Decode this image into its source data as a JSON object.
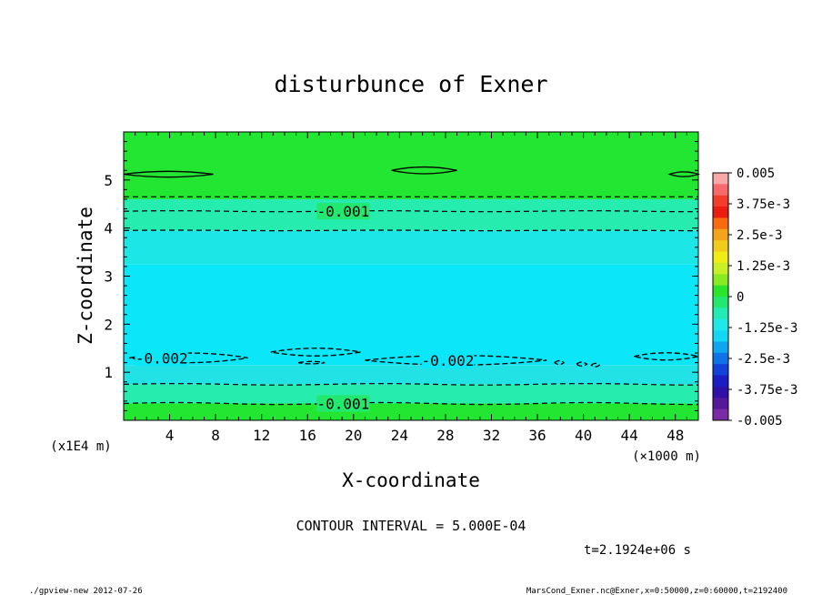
{
  "chart_data": {
    "type": "contour",
    "title": "disturbunce of Exner",
    "xlabel": "X-coordinate",
    "ylabel": "Z-coordinate",
    "x_unit": "(×1000 m)",
    "y_unit": "(x1E4 m)",
    "xlim": [
      0,
      50
    ],
    "ylim": [
      0,
      6
    ],
    "x_ticks": [
      4,
      8,
      12,
      16,
      20,
      24,
      28,
      32,
      36,
      40,
      44,
      48
    ],
    "y_ticks": [
      1,
      2,
      3,
      4,
      5
    ],
    "contour_interval_text": "CONTOUR INTERVAL = 5.000E-04",
    "time_text": "t=2.1924e+06 s",
    "contour_labels": [
      {
        "text": "-0.001",
        "x": 19.1,
        "z": 4.35
      },
      {
        "text": "-0.002",
        "x": 3.3,
        "z": 1.3
      },
      {
        "text": "-0.002",
        "x": 28.2,
        "z": 1.25
      },
      {
        "text": "-0.001",
        "x": 19.1,
        "z": 0.35
      }
    ],
    "bands": [
      {
        "z": [
          0.0,
          0.35
        ],
        "color": "#22e632"
      },
      {
        "z": [
          0.35,
          0.75
        ],
        "color": "#26ecad"
      },
      {
        "z": [
          0.75,
          1.15
        ],
        "color": "#22e2e6"
      },
      {
        "z": [
          1.15,
          3.25
        ],
        "color": "#0be6f8"
      },
      {
        "z": [
          3.25,
          3.95
        ],
        "color": "#1ce7e6"
      },
      {
        "z": [
          3.95,
          4.6
        ],
        "color": "#26ecb0"
      },
      {
        "z": [
          4.6,
          6.0
        ],
        "color": "#22e632"
      }
    ],
    "colorbar": {
      "min": -0.005,
      "max": 0.005,
      "labels": [
        "0.005",
        "3.75e-3",
        "2.5e-3",
        "1.25e-3",
        "0",
        "-1.25e-3",
        "-2.5e-3",
        "-3.75e-3",
        "-0.005"
      ],
      "colors": [
        "#f8a8a8",
        "#f66a6a",
        "#f23c2c",
        "#ec1c10",
        "#f86a10",
        "#f4a41a",
        "#f2cc1c",
        "#f0ec16",
        "#c8f024",
        "#88ea20",
        "#2ae62a",
        "#22e870",
        "#22ecb4",
        "#20e8e8",
        "#12d8f4",
        "#0ea6ee",
        "#1072e8",
        "#1242d8",
        "#1a1cc4",
        "#3010a8",
        "#541898",
        "#7a2ca8"
      ]
    }
  },
  "footer": {
    "left": "./gpview-new  2012-07-26",
    "right": "MarsCond_Exner.nc@Exner,x=0:50000,z=0:60000,t=2192400"
  }
}
